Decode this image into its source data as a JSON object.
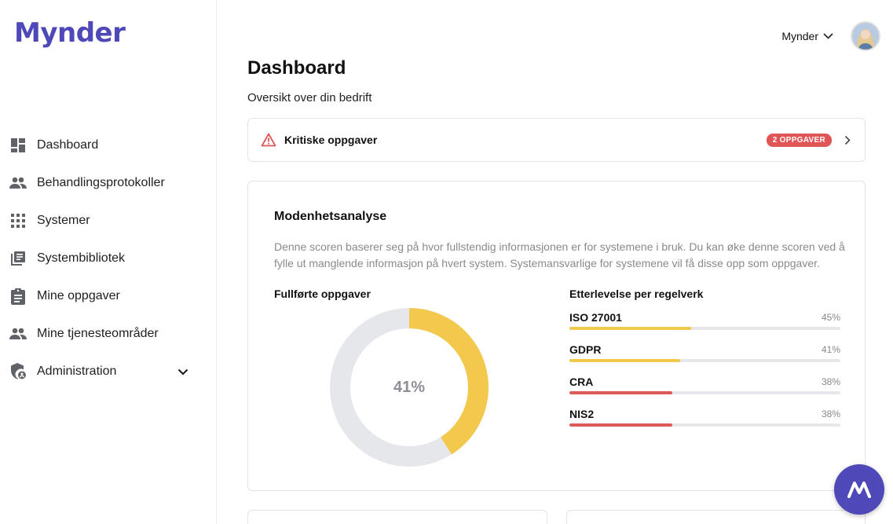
{
  "app": {
    "logo_text": "Mynder"
  },
  "sidebar": {
    "items": [
      {
        "label": "Dashboard",
        "icon": "dashboard-icon"
      },
      {
        "label": "Behandlingsprotokoller",
        "icon": "people-icon"
      },
      {
        "label": "Systemer",
        "icon": "grid-icon"
      },
      {
        "label": "Systembibliotek",
        "icon": "library-icon"
      },
      {
        "label": "Mine oppgaver",
        "icon": "clipboard-icon"
      },
      {
        "label": "Mine tjenesteområder",
        "icon": "people-icon"
      },
      {
        "label": "Administration",
        "icon": "shield-icon",
        "expandable": true
      }
    ]
  },
  "header": {
    "user_name": "Mynder"
  },
  "page": {
    "title": "Dashboard",
    "subtitle": "Oversikt over din bedrift"
  },
  "critical": {
    "title": "Kritiske oppgaver",
    "badge": "2 OPPGAVER"
  },
  "maturity": {
    "title": "Modenhetsanalyse",
    "description": "Denne scoren baserer seg på hvor fullstendig informasjonen er for systemene i bruk. Du kan øke denne scoren ved å fylle ut manglende informasjon på hvert system. Systemansvarlige for systemene vil få disse opp som oppgaver.",
    "completed_title": "Fullførte oppgaver",
    "completed_percent": 41,
    "completed_label": "41%",
    "compliance_title": "Etterlevelse per regelverk",
    "frameworks": [
      {
        "name": "ISO 27001",
        "percent": 45,
        "label": "45%",
        "color": "#f0c94a"
      },
      {
        "name": "GDPR",
        "percent": 41,
        "label": "41%",
        "color": "#f0c94a"
      },
      {
        "name": "CRA",
        "percent": 38,
        "label": "38%",
        "color": "#dc5a5a"
      },
      {
        "name": "NIS2",
        "percent": 38,
        "label": "38%",
        "color": "#dc5a5a"
      }
    ]
  },
  "colors": {
    "brand": "#4f48b8",
    "donut_fill": "#f2c94c",
    "donut_track": "#e5e7ea",
    "danger": "#e05555"
  }
}
